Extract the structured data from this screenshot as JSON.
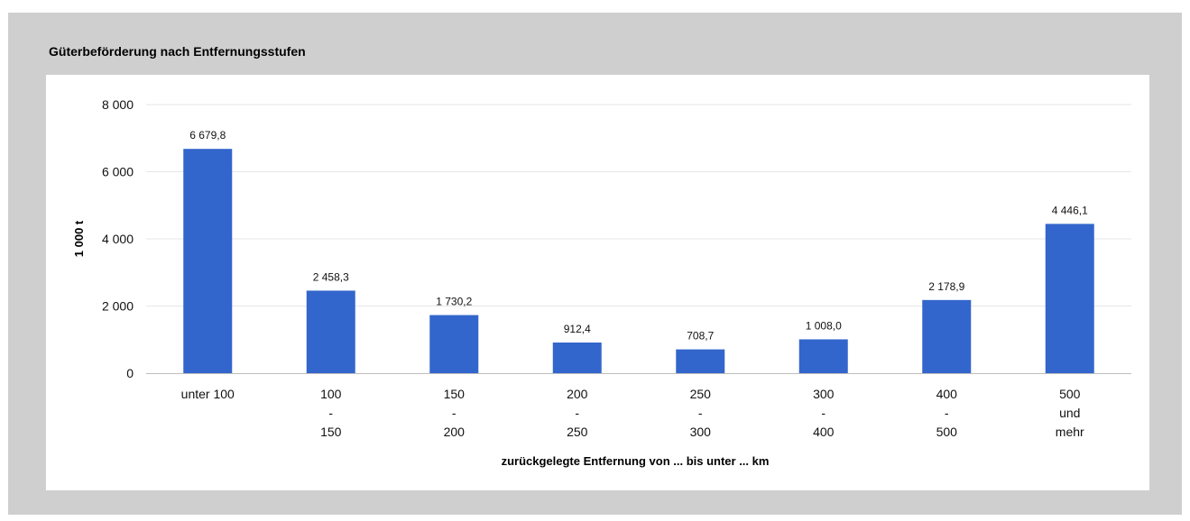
{
  "chart_data": {
    "type": "bar",
    "title": "Güterbeförderung nach Entfernungsstufen",
    "xlabel": "zurückgelegte Entfernung von ... bis unter ... km",
    "ylabel": "1 000 t",
    "ylim": [
      0,
      8000
    ],
    "yticks": [
      0,
      2000,
      4000,
      6000,
      8000
    ],
    "ytick_labels": [
      "0",
      "2 000",
      "4 000",
      "6 000",
      "8 000"
    ],
    "grid": true,
    "categories": [
      [
        "unter 100"
      ],
      [
        "100",
        "-",
        "150"
      ],
      [
        "150",
        "-",
        "200"
      ],
      [
        "200",
        "-",
        "250"
      ],
      [
        "250",
        "-",
        "300"
      ],
      [
        "300",
        "-",
        "400"
      ],
      [
        "400",
        "-",
        "500"
      ],
      [
        "500",
        "und",
        "mehr"
      ]
    ],
    "values": [
      6679.8,
      2458.3,
      1730.2,
      912.4,
      708.7,
      1008.0,
      2178.9,
      4446.1
    ],
    "value_labels": [
      "6 679,8",
      "2 458,3",
      "1 730,2",
      "912,4",
      "708,7",
      "1 008,0",
      "2 178,9",
      "4 446,1"
    ],
    "bar_color": "#3366cc"
  }
}
